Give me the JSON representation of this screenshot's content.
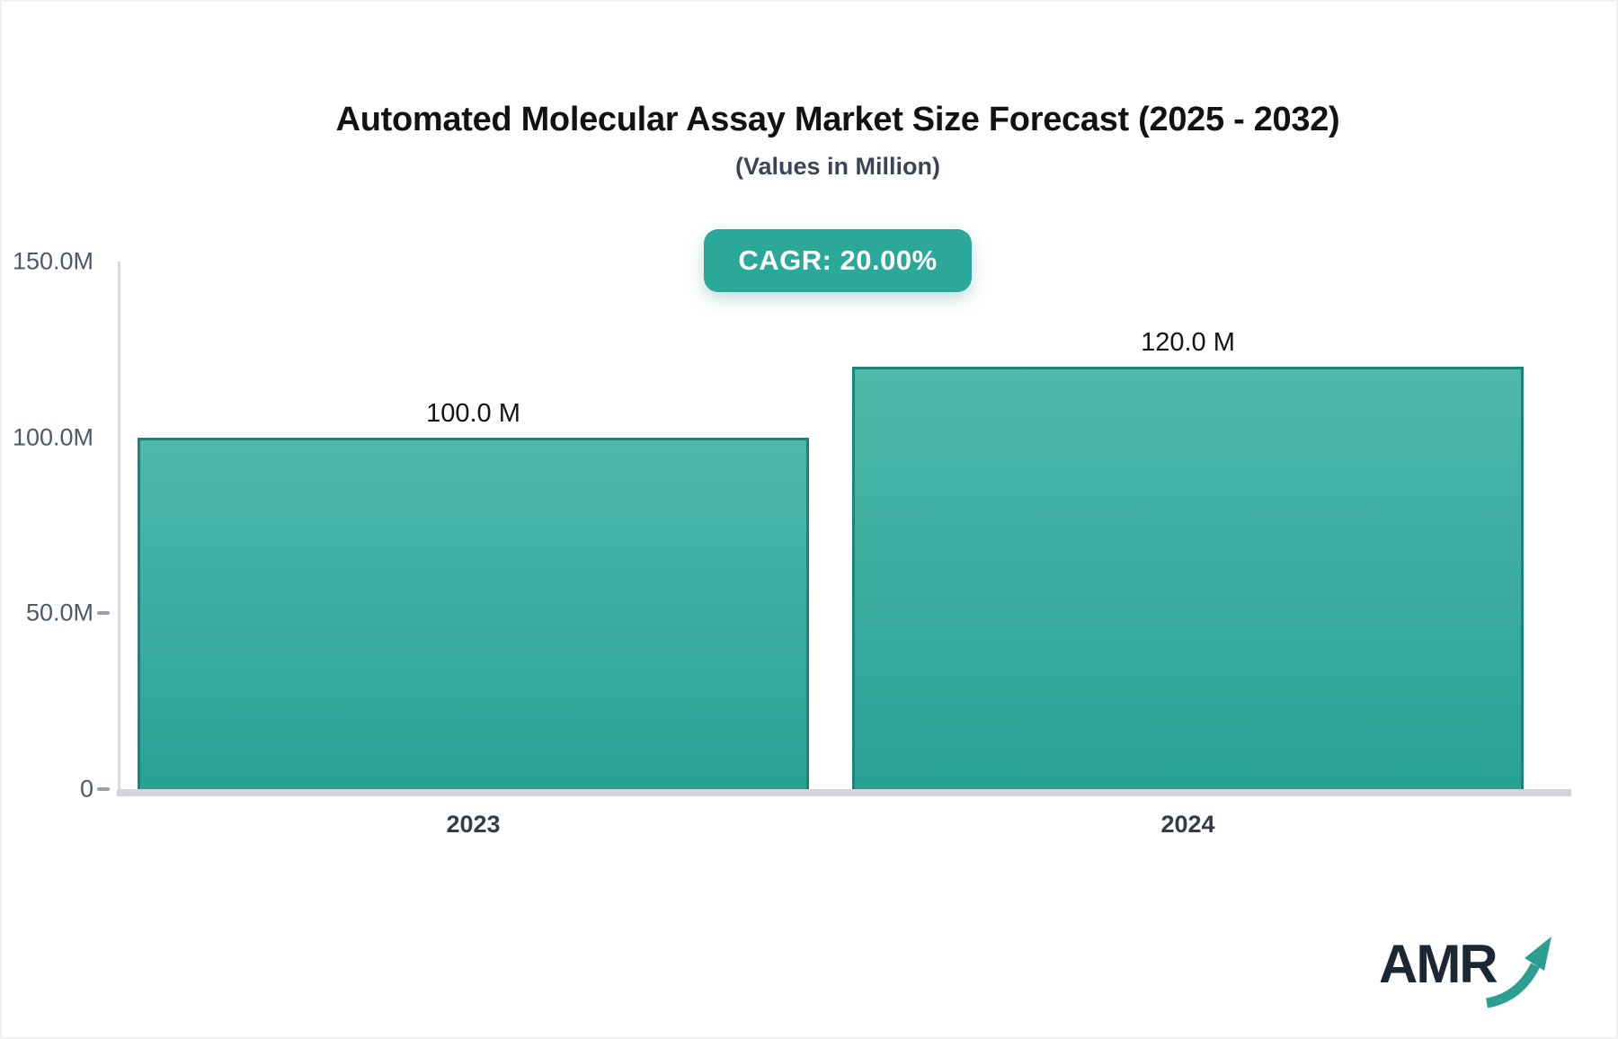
{
  "page": {
    "background": "#ffffff"
  },
  "header": {
    "title": "Automated Molecular Assay Market Size Forecast (2025 - 2032)",
    "subtitle": "(Values in Million)"
  },
  "badge": {
    "label": "CAGR: 20.00%",
    "background": "#2ca89b",
    "text_color": "#ffffff"
  },
  "logo": {
    "text": "AMR",
    "arrow_icon": "growth-arrow",
    "text_color": "#1b2733",
    "arrow_color": "#2e9e93"
  },
  "chart_data": {
    "type": "bar",
    "title": "Automated Molecular Assay Market Size Forecast (2025 - 2032)",
    "subtitle": "(Values in Million)",
    "cagr": "20.00%",
    "categories": [
      "2023",
      "2024"
    ],
    "values": [
      100.0,
      120.0
    ],
    "value_labels": [
      "100.0 M",
      "120.0 M"
    ],
    "unit": "Million",
    "ylim": [
      0,
      150
    ],
    "yticks": [
      {
        "label": "150.0M",
        "value": 150
      },
      {
        "label": "100.0M",
        "value": 100
      },
      {
        "label": "50.0M",
        "value": 50
      },
      {
        "label": "0",
        "value": 0
      }
    ],
    "grid": "off",
    "legend": "none",
    "bar_color_top": "#4fb9ab",
    "bar_color_bottom": "#28a295",
    "bar_border_color": "#18847a"
  }
}
